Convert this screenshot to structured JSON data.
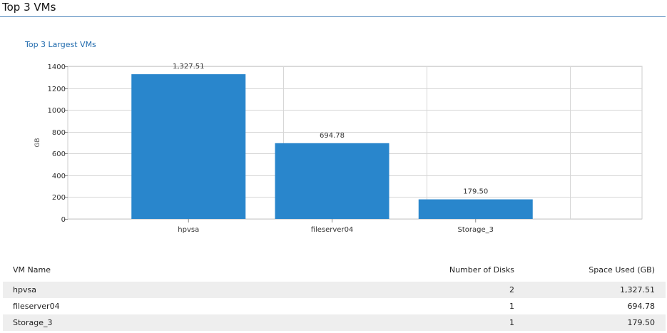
{
  "header": {
    "title": "Top 3 VMs"
  },
  "chart_data": {
    "type": "bar",
    "title": "Top 3 Largest VMs",
    "ylabel": "GB",
    "xlabel": "",
    "categories": [
      "hpvsa",
      "fileserver04",
      "Storage_3"
    ],
    "values": [
      1327.51,
      694.78,
      179.5
    ],
    "value_labels": [
      "1,327.51",
      "694.78",
      "179.50"
    ],
    "ylim": [
      0,
      1400
    ],
    "yticks": [
      0,
      200,
      400,
      600,
      800,
      1000,
      1200,
      1400
    ],
    "grid": true,
    "bar_color": "#2986cc"
  },
  "table": {
    "headers": [
      "VM Name",
      "Number of Disks",
      "Space Used (GB)"
    ],
    "rows": [
      [
        "hpvsa",
        "2",
        "1,327.51"
      ],
      [
        "fileserver04",
        "1",
        "694.78"
      ],
      [
        "Storage_3",
        "1",
        "179.50"
      ]
    ]
  }
}
